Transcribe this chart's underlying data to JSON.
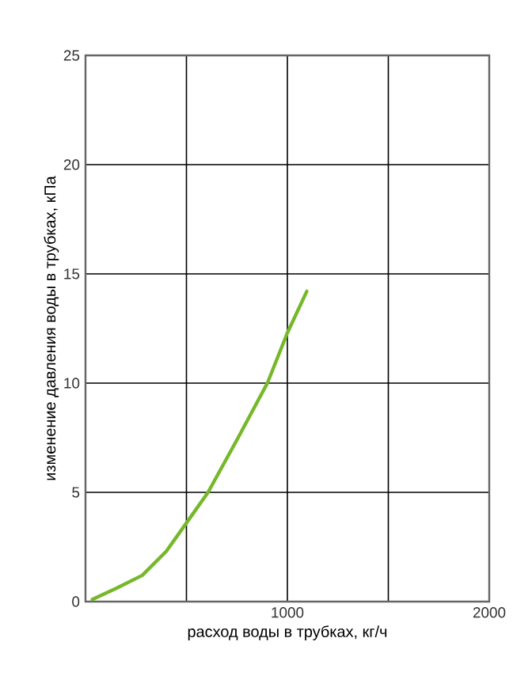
{
  "chart_data": {
    "type": "line",
    "xlabel": "расход воды в трубках, кг/ч",
    "ylabel": "изменение давления воды в трубках, кПа",
    "x": [
      34,
      150,
      281,
      400,
      500,
      607,
      750,
      901,
      1000,
      1096
    ],
    "series": [
      {
        "color": "#76b82a",
        "values": [
          0.1,
          0.6,
          1.2,
          2.3,
          3.6,
          5,
          7.4,
          10,
          12.3,
          14.2
        ]
      }
    ],
    "xlim": [
      0,
      2000
    ],
    "xticks": [
      {
        "value": 0,
        "label": null
      },
      {
        "value": 500,
        "label": null
      },
      1000,
      {
        "value": 1500,
        "label": null
      },
      2000
    ],
    "ylim": [
      0,
      25
    ],
    "yticks": [
      0,
      5,
      10,
      15,
      20,
      25
    ],
    "grid": true,
    "marker": "none",
    "line_style": "solid"
  }
}
